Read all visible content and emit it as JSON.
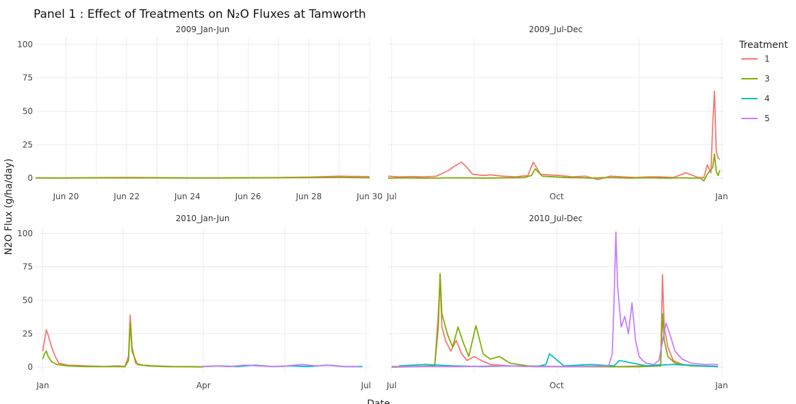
{
  "chart_data": {
    "type": "line",
    "title": "Panel 1 : Effect of Treatments on N₂O Fluxes at Tamworth",
    "xlabel": "Date",
    "ylabel": "N2O Flux (g/ha/day)",
    "ylim": [
      -5,
      105
    ],
    "yticks": [
      0,
      25,
      50,
      75,
      100
    ],
    "grid": true,
    "legend": {
      "title": "Treatment",
      "position": "right",
      "entries": [
        {
          "label": "1",
          "color": "#F8766D"
        },
        {
          "label": "3",
          "color": "#7CAE00"
        },
        {
          "label": "4",
          "color": "#00BFC4"
        },
        {
          "label": "5",
          "color": "#C77CFF"
        }
      ]
    },
    "panels": [
      {
        "label": "2009_Jan-Jun",
        "xlim": [
          "2009-06-19",
          "2009-06-30"
        ],
        "xticks": [
          {
            "date": "2009-06-20",
            "label": "Jun 20"
          },
          {
            "date": "2009-06-22",
            "label": "Jun 22"
          },
          {
            "date": "2009-06-24",
            "label": "Jun 24"
          },
          {
            "date": "2009-06-26",
            "label": "Jun 26"
          },
          {
            "date": "2009-06-28",
            "label": "Jun 28"
          },
          {
            "date": "2009-06-30",
            "label": "Jun 30"
          }
        ],
        "series": [
          {
            "name": "1",
            "x": [
              "2009-06-19",
              "2009-06-20",
              "2009-06-21",
              "2009-06-22",
              "2009-06-23",
              "2009-06-24",
              "2009-06-25",
              "2009-06-26",
              "2009-06-27",
              "2009-06-28",
              "2009-06-29",
              "2009-06-30"
            ],
            "y": [
              0.3,
              0.2,
              0.4,
              0.6,
              0.4,
              0.3,
              0.3,
              0.4,
              0.5,
              0.8,
              1.5,
              1.2
            ]
          },
          {
            "name": "3",
            "x": [
              "2009-06-19",
              "2009-06-20",
              "2009-06-21",
              "2009-06-22",
              "2009-06-23",
              "2009-06-24",
              "2009-06-25",
              "2009-06-26",
              "2009-06-27",
              "2009-06-28",
              "2009-06-29",
              "2009-06-30"
            ],
            "y": [
              0.1,
              0.1,
              0.2,
              0.2,
              0.2,
              0.1,
              0.1,
              0.2,
              0.3,
              0.4,
              0.6,
              0.3
            ]
          }
        ]
      },
      {
        "label": "2009_Jul-Dec",
        "xlim": [
          "2009-06-29",
          "2010-01-02"
        ],
        "xticks": [
          {
            "date": "2009-07-01",
            "label": "Jul"
          },
          {
            "date": "2009-10-01",
            "label": "Oct"
          },
          {
            "date": "2010-01-01",
            "label": "Jan"
          }
        ],
        "series": [
          {
            "name": "1",
            "x": [
              "2009-06-29",
              "2009-07-05",
              "2009-07-12",
              "2009-07-19",
              "2009-07-26",
              "2009-08-02",
              "2009-08-05",
              "2009-08-09",
              "2009-08-12",
              "2009-08-15",
              "2009-08-18",
              "2009-08-21",
              "2009-08-25",
              "2009-09-01",
              "2009-09-08",
              "2009-09-15",
              "2009-09-18",
              "2009-09-22",
              "2009-09-26",
              "2009-10-03",
              "2009-10-10",
              "2009-10-17",
              "2009-10-24",
              "2009-10-31",
              "2009-11-07",
              "2009-11-14",
              "2009-11-21",
              "2009-11-28",
              "2009-12-05",
              "2009-12-12",
              "2009-12-19",
              "2009-12-22",
              "2009-12-24",
              "2009-12-26",
              "2009-12-27",
              "2009-12-28",
              "2009-12-29",
              "2009-12-30",
              "2009-12-31"
            ],
            "y": [
              1.5,
              1.0,
              1.2,
              1.0,
              1.5,
              6.0,
              9.0,
              12.0,
              8.0,
              3.0,
              2.5,
              2.0,
              2.5,
              1.5,
              1.0,
              2.0,
              12.0,
              3.0,
              2.5,
              2.0,
              1.0,
              1.5,
              -1.0,
              1.5,
              1.0,
              0.5,
              1.0,
              1.0,
              0.5,
              4.0,
              0.5,
              0.5,
              10.0,
              4.0,
              40.0,
              65.0,
              20.0,
              15.0,
              14.0
            ]
          },
          {
            "name": "3",
            "x": [
              "2009-06-29",
              "2009-07-05",
              "2009-07-12",
              "2009-07-19",
              "2009-07-26",
              "2009-08-02",
              "2009-08-09",
              "2009-08-16",
              "2009-08-23",
              "2009-08-30",
              "2009-09-06",
              "2009-09-13",
              "2009-09-17",
              "2009-09-19",
              "2009-09-23",
              "2009-09-30",
              "2009-10-07",
              "2009-10-14",
              "2009-10-21",
              "2009-10-28",
              "2009-11-04",
              "2009-11-11",
              "2009-11-18",
              "2009-11-25",
              "2009-12-02",
              "2009-12-09",
              "2009-12-16",
              "2009-12-20",
              "2009-12-22",
              "2009-12-24",
              "2009-12-27",
              "2009-12-28",
              "2009-12-29",
              "2009-12-30",
              "2009-12-31"
            ],
            "y": [
              0.0,
              0.2,
              0.2,
              0.0,
              0.0,
              0.3,
              0.2,
              0.2,
              0.0,
              0.2,
              0.3,
              0.5,
              2.0,
              7.0,
              1.5,
              1.0,
              0.5,
              0.3,
              0.0,
              0.5,
              0.3,
              0.0,
              0.3,
              0.2,
              0.0,
              0.3,
              0.0,
              0.2,
              -2.0,
              3.0,
              8.0,
              18.0,
              5.0,
              2.0,
              6.0
            ]
          }
        ]
      },
      {
        "label": "2010_Jan-Jun",
        "xlim": [
          "2009-12-28",
          "2010-07-03"
        ],
        "xticks": [
          {
            "date": "2010-01-01",
            "label": "Jan"
          },
          {
            "date": "2010-04-01",
            "label": "Apr"
          },
          {
            "date": "2010-07-01",
            "label": "Jul"
          }
        ],
        "series": [
          {
            "name": "1",
            "x": [
              "2010-01-01",
              "2010-01-02",
              "2010-01-03",
              "2010-01-04",
              "2010-01-06",
              "2010-01-08",
              "2010-01-10",
              "2010-01-15",
              "2010-01-25",
              "2010-02-05",
              "2010-02-12",
              "2010-02-16",
              "2010-02-18",
              "2010-02-19",
              "2010-02-20",
              "2010-02-22",
              "2010-02-26",
              "2010-03-05",
              "2010-03-15",
              "2010-03-25",
              "2010-04-01"
            ],
            "y": [
              12.0,
              20.0,
              28.0,
              24.0,
              15.0,
              8.0,
              3.0,
              1.5,
              1.0,
              0.5,
              1.0,
              0.5,
              8.0,
              39.0,
              15.0,
              3.0,
              1.5,
              1.0,
              0.5,
              0.5,
              0.3
            ]
          },
          {
            "name": "3",
            "x": [
              "2010-01-01",
              "2010-01-02",
              "2010-01-03",
              "2010-01-04",
              "2010-01-06",
              "2010-01-09",
              "2010-01-15",
              "2010-01-25",
              "2010-02-05",
              "2010-02-12",
              "2010-02-16",
              "2010-02-18",
              "2010-02-19",
              "2010-02-20",
              "2010-02-23",
              "2010-03-01",
              "2010-03-10",
              "2010-03-20",
              "2010-04-01"
            ],
            "y": [
              6.0,
              10.0,
              12.0,
              8.0,
              4.0,
              2.0,
              1.0,
              0.5,
              0.5,
              0.5,
              0.3,
              5.0,
              33.0,
              12.0,
              2.0,
              1.0,
              0.5,
              0.3,
              0.2
            ]
          },
          {
            "name": "4",
            "x": [
              "2010-03-31",
              "2010-04-10",
              "2010-04-20",
              "2010-04-30",
              "2010-05-10",
              "2010-05-20",
              "2010-05-30",
              "2010-06-09",
              "2010-06-19",
              "2010-06-29"
            ],
            "y": [
              0.5,
              1.0,
              0.5,
              1.5,
              0.5,
              1.0,
              0.5,
              1.5,
              0.5,
              0.5
            ]
          },
          {
            "name": "5",
            "x": [
              "2010-03-31",
              "2010-04-08",
              "2010-04-16",
              "2010-04-24",
              "2010-05-02",
              "2010-05-10",
              "2010-05-18",
              "2010-05-26",
              "2010-06-03",
              "2010-06-11",
              "2010-06-19",
              "2010-06-27"
            ],
            "y": [
              0.5,
              1.0,
              0.5,
              1.5,
              1.0,
              0.5,
              1.0,
              2.0,
              1.0,
              1.5,
              0.5,
              0.5
            ]
          }
        ]
      },
      {
        "label": "2010_Jul-Dec",
        "xlim": [
          "2010-06-29",
          "2011-01-02"
        ],
        "xticks": [
          {
            "date": "2010-07-01",
            "label": "Jul"
          },
          {
            "date": "2010-10-01",
            "label": "Oct"
          },
          {
            "date": "2011-01-01",
            "label": "Jan"
          }
        ],
        "series": [
          {
            "name": "1",
            "x": [
              "2010-07-01",
              "2010-07-15",
              "2010-07-25",
              "2010-07-27",
              "2010-07-28",
              "2010-07-29",
              "2010-07-31",
              "2010-08-03",
              "2010-08-06",
              "2010-08-09",
              "2010-08-12",
              "2010-08-16",
              "2010-08-20",
              "2010-08-25",
              "2010-09-05",
              "2010-09-20",
              "2010-10-05",
              "2010-10-20",
              "2010-11-05",
              "2010-11-20",
              "2010-11-28",
              "2010-11-29",
              "2010-11-30",
              "2010-12-02",
              "2010-12-05",
              "2010-12-10",
              "2010-12-20",
              "2010-12-30"
            ],
            "y": [
              0.5,
              0.5,
              1.0,
              40.0,
              67.0,
              30.0,
              20.0,
              12.0,
              20.0,
              10.0,
              5.0,
              8.0,
              5.0,
              2.0,
              1.0,
              0.5,
              0.5,
              0.5,
              0.5,
              1.0,
              2.0,
              69.0,
              30.0,
              15.0,
              5.0,
              2.0,
              1.0,
              0.5
            ]
          },
          {
            "name": "3",
            "x": [
              "2010-07-01",
              "2010-07-15",
              "2010-07-25",
              "2010-07-27",
              "2010-07-28",
              "2010-07-29",
              "2010-08-01",
              "2010-08-04",
              "2010-08-07",
              "2010-08-10",
              "2010-08-13",
              "2010-08-17",
              "2010-08-21",
              "2010-08-25",
              "2010-08-30",
              "2010-09-05",
              "2010-09-15",
              "2010-09-30",
              "2010-10-15",
              "2010-10-30",
              "2010-11-15",
              "2010-11-28",
              "2010-11-29",
              "2010-11-30",
              "2010-12-02",
              "2010-12-06",
              "2010-12-15",
              "2010-12-30"
            ],
            "y": [
              0.0,
              0.5,
              1.0,
              30.0,
              70.0,
              40.0,
              25.0,
              15.0,
              30.0,
              18.0,
              8.0,
              31.0,
              10.0,
              6.0,
              8.0,
              3.0,
              1.0,
              0.5,
              0.5,
              0.3,
              0.3,
              1.0,
              40.0,
              20.0,
              8.0,
              3.0,
              1.0,
              0.5
            ]
          },
          {
            "name": "4",
            "x": [
              "2010-07-05",
              "2010-07-20",
              "2010-08-05",
              "2010-08-20",
              "2010-09-05",
              "2010-09-20",
              "2010-09-25",
              "2010-09-27",
              "2010-10-05",
              "2010-10-20",
              "2010-11-02",
              "2010-11-05",
              "2010-11-20",
              "2010-12-05",
              "2010-12-20",
              "2010-12-30"
            ],
            "y": [
              1.0,
              2.0,
              1.0,
              0.5,
              1.0,
              0.5,
              2.0,
              10.0,
              1.0,
              2.0,
              1.0,
              5.0,
              1.0,
              2.0,
              1.0,
              0.5
            ]
          },
          {
            "name": "5",
            "x": [
              "2010-07-01",
              "2010-07-20",
              "2010-08-10",
              "2010-09-01",
              "2010-09-20",
              "2010-10-10",
              "2010-10-30",
              "2010-11-01",
              "2010-11-02",
              "2010-11-03",
              "2010-11-04",
              "2010-11-05",
              "2010-11-06",
              "2010-11-08",
              "2010-11-10",
              "2010-11-12",
              "2010-11-14",
              "2010-11-16",
              "2010-11-18",
              "2010-11-20",
              "2010-11-24",
              "2010-11-27",
              "2010-12-01",
              "2010-12-03",
              "2010-12-06",
              "2010-12-10",
              "2010-12-15",
              "2010-12-22",
              "2010-12-30"
            ],
            "y": [
              0.5,
              0.5,
              0.5,
              1.0,
              0.5,
              0.5,
              1.0,
              10.0,
              50.0,
              101.0,
              60.0,
              45.0,
              30.0,
              38.0,
              25.0,
              48.0,
              20.0,
              8.0,
              5.0,
              3.0,
              2.0,
              5.0,
              33.0,
              25.0,
              12.0,
              6.0,
              3.0,
              2.0,
              2.0
            ]
          }
        ]
      }
    ]
  }
}
